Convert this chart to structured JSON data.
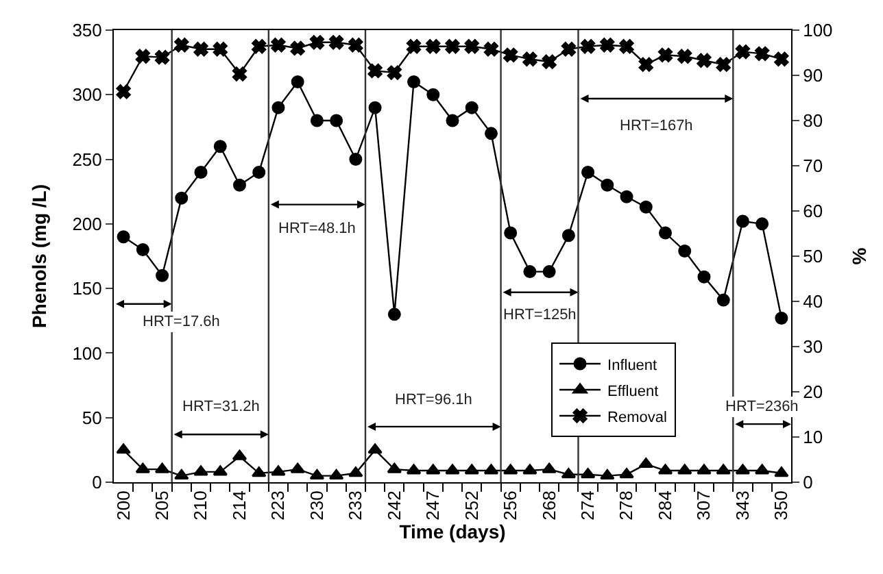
{
  "chart_data": {
    "type": "line",
    "xlabel": "Time (days)",
    "ylabel": "Phenols (mg /L)",
    "y2label": "%",
    "categories": [
      "200",
      null,
      "205",
      null,
      "210",
      null,
      "214",
      null,
      "223",
      null,
      "230",
      null,
      "233",
      null,
      "242",
      null,
      "247",
      null,
      "252",
      null,
      "256",
      null,
      "268",
      null,
      "274",
      null,
      "278",
      null,
      "284",
      null,
      "307",
      null,
      "343",
      null,
      "350"
    ],
    "series": [
      {
        "name": "Influent",
        "color": "#000000",
        "marker": "circle",
        "values": [
          190,
          180,
          160,
          220,
          240,
          260,
          230,
          240,
          290,
          310,
          280,
          280,
          250,
          290,
          130,
          310,
          300,
          280,
          290,
          270,
          193,
          163,
          163,
          191,
          240,
          230,
          221,
          213,
          193,
          179,
          159,
          141,
          202,
          200,
          127
        ]
      },
      {
        "name": "Effluent",
        "color": "#000000",
        "marker": "triangle",
        "values": [
          25,
          10,
          10,
          5,
          8,
          8,
          20,
          7,
          8,
          10,
          5,
          5,
          7,
          25,
          10,
          9,
          9,
          9,
          9,
          9,
          9,
          9,
          10,
          6,
          6,
          5,
          6,
          14,
          9,
          9,
          9,
          9,
          9,
          9,
          7
        ]
      },
      {
        "name": "Removal",
        "color": "#000000",
        "marker": "cross",
        "axis": "y2",
        "values": [
          86.4,
          94.2,
          94,
          96.7,
          95.8,
          95.8,
          90.3,
          96.4,
          96.7,
          96,
          97.3,
          97.3,
          96.7,
          91,
          90.6,
          96.4,
          96.4,
          96.4,
          96.4,
          95.8,
          94.5,
          93.6,
          93,
          95.8,
          96.4,
          96.7,
          96.4,
          92.4,
          94.5,
          94.2,
          93.3,
          92.4,
          95.2,
          94.8,
          93.6
        ]
      }
    ],
    "ylim": [
      0,
      350
    ],
    "yticks": [
      0,
      50,
      100,
      150,
      200,
      250,
      300,
      350
    ],
    "y2lim": [
      0,
      100
    ],
    "y2ticks": [
      0,
      10,
      20,
      30,
      40,
      50,
      60,
      70,
      80,
      90,
      100
    ],
    "annotations": [
      "HRT=17.6h",
      "HRT=31.2h",
      "HRT=48.1h",
      "HRT=96.1h",
      "HRT=125h",
      "HRT=167h",
      "HRT=236h"
    ],
    "legend": "bottom right",
    "line_style": "solid"
  }
}
